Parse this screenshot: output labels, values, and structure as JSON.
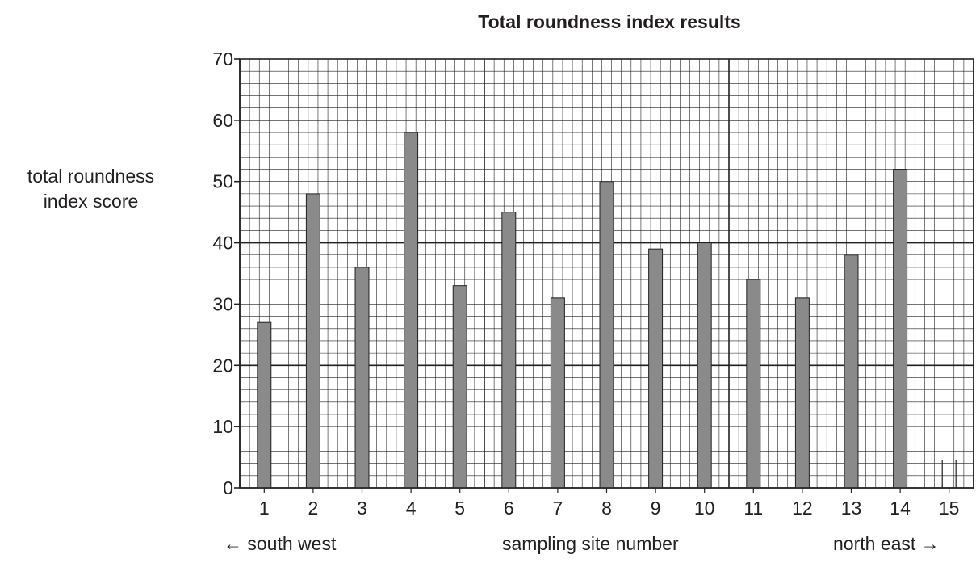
{
  "chart_data": {
    "type": "bar",
    "title": "Total roundness index results",
    "ylabel_lines": [
      "total roundness",
      "index score"
    ],
    "xlabel": "sampling site number",
    "x_direction_left": "← south west",
    "x_direction_right": "north east →",
    "categories": [
      "1",
      "2",
      "3",
      "4",
      "5",
      "6",
      "7",
      "8",
      "9",
      "10",
      "11",
      "12",
      "13",
      "14",
      "15"
    ],
    "values": [
      27,
      48,
      36,
      58,
      33,
      45,
      31,
      50,
      39,
      40,
      34,
      31,
      38,
      52,
      null
    ],
    "ylim": [
      0,
      70
    ],
    "yticks": [
      0,
      10,
      20,
      30,
      40,
      50,
      60,
      70
    ],
    "grid": true,
    "bar_color": "#8a8a8a"
  }
}
